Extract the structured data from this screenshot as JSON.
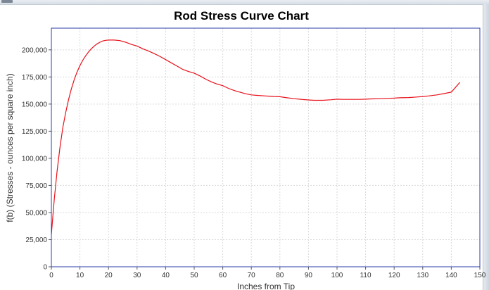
{
  "colors": {
    "series": "#e8101a",
    "plot_border": "#2c3fa8",
    "grid": "#d9d9d9",
    "background": "#ffffff"
  },
  "chart_data": {
    "type": "line",
    "title": "Rod Stress Curve Chart",
    "xlabel": "Inches from Tip",
    "ylabel": "f(b) (Stresses - ounces per square inch)",
    "xlim": [
      0,
      150
    ],
    "ylim": [
      0,
      220000
    ],
    "xticks": [
      0,
      10,
      20,
      30,
      40,
      50,
      60,
      70,
      80,
      90,
      100,
      110,
      120,
      130,
      140,
      150
    ],
    "yticks": [
      0,
      25000,
      50000,
      75000,
      100000,
      125000,
      150000,
      175000,
      200000
    ],
    "ytick_labels": [
      "0",
      "25,000",
      "50,000",
      "75,000",
      "100,000",
      "125,000",
      "150,000",
      "175,000",
      "200,000"
    ],
    "grid": true,
    "legend": "none",
    "series": [
      {
        "x": [
          0,
          1,
          2,
          3,
          4,
          5,
          6,
          7,
          8,
          9,
          10,
          11,
          12,
          13,
          14,
          15,
          16,
          17,
          18,
          19,
          20,
          22,
          24,
          26,
          28,
          30,
          32,
          34,
          36,
          38,
          40,
          42,
          44,
          46,
          48,
          50,
          52,
          54,
          56,
          58,
          60,
          62,
          64,
          66,
          68,
          70,
          72,
          75,
          78,
          80,
          82,
          85,
          88,
          90,
          92,
          95,
          98,
          100,
          102,
          105,
          108,
          110,
          112,
          115,
          118,
          120,
          122,
          125,
          128,
          130,
          132,
          135,
          138,
          140,
          141,
          142,
          143
        ],
        "y": [
          30000,
          62000,
          88000,
          110000,
          128000,
          142000,
          154000,
          164000,
          172500,
          179500,
          185500,
          190500,
          194500,
          198000,
          201000,
          203500,
          205500,
          207000,
          208200,
          208800,
          209000,
          209000,
          208500,
          207000,
          205000,
          203500,
          201000,
          199000,
          196500,
          194000,
          191000,
          188000,
          185000,
          182000,
          180000,
          178500,
          176000,
          173000,
          170500,
          168500,
          167000,
          164500,
          162500,
          161000,
          159500,
          158500,
          158000,
          157500,
          157000,
          156800,
          156000,
          155000,
          154200,
          153800,
          153500,
          153500,
          154000,
          154500,
          154300,
          154300,
          154300,
          154500,
          154800,
          155000,
          155300,
          155500,
          155800,
          156000,
          156500,
          157000,
          157500,
          158500,
          160000,
          161000,
          164000,
          167000,
          170000
        ]
      }
    ]
  }
}
